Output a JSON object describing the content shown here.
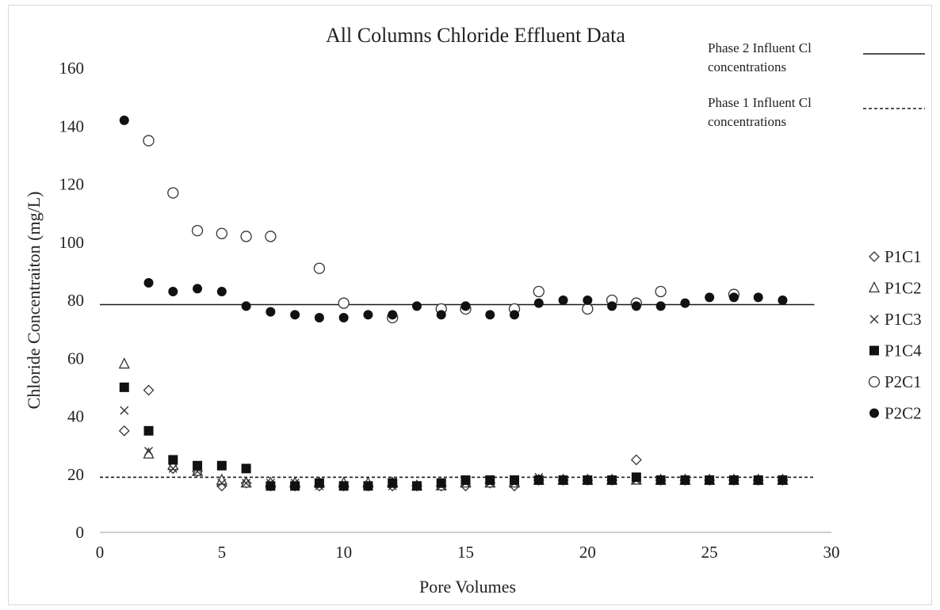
{
  "chart_data": {
    "type": "scatter",
    "title": "All Columns Chloride Effluent Data",
    "xlabel": "Pore Volumes",
    "ylabel": "Chloride Concentraiton (mg/L)",
    "xlim": [
      0,
      30
    ],
    "ylim": [
      0,
      160
    ],
    "xticks": [
      0,
      5,
      10,
      15,
      20,
      25,
      30
    ],
    "yticks": [
      0,
      20,
      40,
      60,
      80,
      100,
      120,
      140,
      160
    ],
    "grid": false,
    "legend_position": "right",
    "lines": [
      {
        "name": "Phase 2 Influent Cl concentrations",
        "name_lines": [
          "Phase 2 Influent Cl",
          "concentrations"
        ],
        "style": "solid",
        "y": 78.5,
        "x": [
          0,
          29.3
        ]
      },
      {
        "name": "Phase 1 Influent Cl concentrations",
        "name_lines": [
          "Phase 1 Influent Cl",
          "concentrations"
        ],
        "style": "dashed",
        "y": 19,
        "x": [
          0,
          29.3
        ]
      }
    ],
    "series": [
      {
        "name": "P1C1",
        "marker": "diamond-open",
        "x": [
          1,
          2,
          3,
          4,
          5,
          6,
          7,
          8,
          9,
          10,
          11,
          12,
          13,
          14,
          15,
          16,
          17,
          18,
          19,
          20,
          21,
          22,
          23,
          24,
          25,
          26,
          27,
          28
        ],
        "y": [
          35,
          49,
          22,
          21,
          16,
          17,
          16,
          16,
          16,
          16,
          16,
          16,
          16,
          16,
          16,
          17,
          16,
          18,
          18,
          18,
          18,
          25,
          18,
          18,
          18,
          18,
          18,
          18
        ]
      },
      {
        "name": "P1C2",
        "marker": "triangle-open",
        "x": [
          1,
          2,
          3,
          4,
          5,
          6,
          7,
          8,
          9,
          10,
          11,
          12,
          13,
          14,
          15,
          16,
          17,
          18,
          19,
          20,
          21,
          22,
          23,
          24,
          25,
          26,
          27,
          28
        ],
        "y": [
          58,
          27,
          23,
          21,
          18,
          17,
          17,
          17,
          17,
          17,
          17,
          17,
          16,
          16,
          17,
          17,
          17,
          18,
          18,
          18,
          18,
          18,
          18,
          18,
          18,
          18,
          18,
          18
        ]
      },
      {
        "name": "P1C3",
        "marker": "x",
        "x": [
          1,
          2,
          3,
          4,
          5,
          6,
          7,
          8,
          9,
          10,
          11,
          12,
          13,
          14,
          15,
          16,
          17,
          18,
          19,
          20,
          21,
          22,
          23,
          24,
          25,
          26,
          27,
          28
        ],
        "y": [
          42,
          28,
          22,
          21,
          17,
          17,
          17,
          17,
          16,
          16,
          16,
          16,
          16,
          16,
          17,
          17,
          17,
          19,
          18,
          18,
          18,
          18,
          18,
          18,
          18,
          18,
          18,
          18
        ]
      },
      {
        "name": "P1C4",
        "marker": "square-filled",
        "x": [
          1,
          2,
          3,
          4,
          5,
          6,
          7,
          8,
          9,
          10,
          11,
          12,
          13,
          14,
          15,
          16,
          17,
          18,
          19,
          20,
          21,
          22,
          23,
          24,
          25,
          26,
          27,
          28
        ],
        "y": [
          50,
          35,
          25,
          23,
          23,
          22,
          16,
          16,
          17,
          16,
          16,
          17,
          16,
          17,
          18,
          18,
          18,
          18,
          18,
          18,
          18,
          19,
          18,
          18,
          18,
          18,
          18,
          18
        ]
      },
      {
        "name": "P2C1",
        "marker": "circle-open",
        "x": [
          2,
          3,
          4,
          5,
          6,
          7,
          9,
          10,
          12,
          14,
          15,
          17,
          18,
          20,
          21,
          22,
          23,
          26
        ],
        "y": [
          135,
          117,
          104,
          103,
          102,
          102,
          91,
          79,
          74,
          77,
          77,
          77,
          83,
          77,
          80,
          79,
          83,
          82
        ]
      },
      {
        "name": "P2C2",
        "marker": "circle-filled",
        "x": [
          1,
          2,
          3,
          4,
          5,
          6,
          7,
          8,
          9,
          10,
          11,
          12,
          13,
          14,
          15,
          16,
          17,
          18,
          19,
          20,
          21,
          22,
          23,
          24,
          25,
          26,
          27,
          28
        ],
        "y": [
          142,
          86,
          83,
          84,
          83,
          78,
          76,
          75,
          74,
          74,
          75,
          75,
          78,
          75,
          78,
          75,
          75,
          79,
          80,
          80,
          78,
          78,
          78,
          79,
          81,
          81,
          81,
          80
        ]
      }
    ]
  }
}
